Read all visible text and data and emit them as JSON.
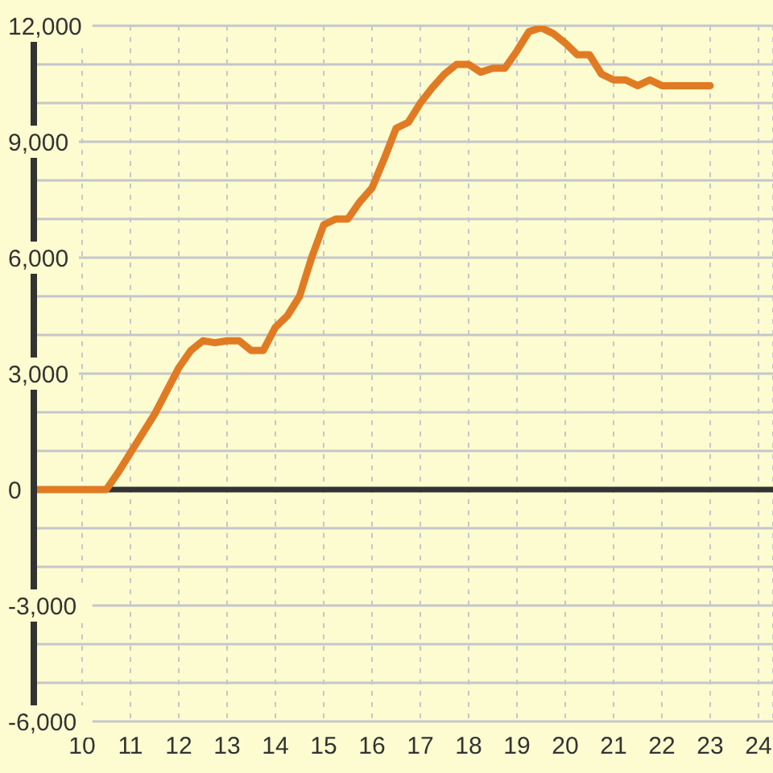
{
  "chart_data": {
    "type": "line",
    "x": [
      9,
      9.25,
      9.5,
      9.75,
      10,
      10.25,
      10.5,
      10.75,
      11,
      11.25,
      11.5,
      11.75,
      12,
      12.25,
      12.5,
      12.75,
      13,
      13.25,
      13.5,
      13.75,
      14,
      14.25,
      14.5,
      14.75,
      15,
      15.25,
      15.5,
      15.75,
      16,
      16.25,
      16.5,
      16.75,
      17,
      17.25,
      17.5,
      17.75,
      18,
      18.25,
      18.5,
      18.75,
      19,
      19.25,
      19.5,
      19.75,
      20,
      20.25,
      20.5,
      20.75,
      21,
      21.25,
      21.5,
      21.75,
      22,
      22.25,
      22.5,
      22.75,
      23
    ],
    "series": [
      {
        "color": "#e07b24",
        "values": [
          0,
          0,
          0,
          0,
          0,
          0,
          0,
          450,
          950,
          1450,
          1950,
          2550,
          3150,
          3600,
          3850,
          3800,
          3850,
          3850,
          3600,
          3600,
          4200,
          4500,
          5000,
          6000,
          6850,
          7000,
          7000,
          7450,
          7800,
          8550,
          9350,
          9500,
          10000,
          10400,
          10750,
          11000,
          11000,
          10800,
          10900,
          10900,
          11350,
          11850,
          11950,
          11800,
          11550,
          11250,
          11250,
          10750,
          10600,
          10600,
          10450,
          10600,
          10450,
          10450,
          10450,
          10450,
          10450
        ]
      }
    ],
    "xlim": [
      9,
      24.3
    ],
    "xticks": [
      10,
      11,
      12,
      13,
      14,
      15,
      16,
      17,
      18,
      19,
      20,
      21,
      22,
      23,
      24
    ],
    "ylim": [
      -6000,
      12000
    ],
    "yticks": [
      {
        "value": -6000,
        "label": "-6,000"
      },
      {
        "value": -5000,
        "label": null
      },
      {
        "value": -4000,
        "label": null
      },
      {
        "value": -3000,
        "label": "-3,000"
      },
      {
        "value": -2000,
        "label": null
      },
      {
        "value": -1000,
        "label": null
      },
      0,
      {
        "value": 1000,
        "label": null
      },
      {
        "value": 2000,
        "label": null
      },
      {
        "value": 3000,
        "label": "3,000"
      },
      {
        "value": 4000,
        "label": null
      },
      {
        "value": 5000,
        "label": null
      },
      {
        "value": 6000,
        "label": "6,000"
      },
      {
        "value": 7000,
        "label": null
      },
      {
        "value": 8000,
        "label": null
      },
      {
        "value": 9000,
        "label": "9,000"
      },
      {
        "value": 10000,
        "label": null
      },
      {
        "value": 11000,
        "label": null
      },
      {
        "value": 12000,
        "label": "12,000"
      }
    ],
    "ref_lines": [
      {
        "axis": "y",
        "value": 0,
        "color": "#333333"
      }
    ],
    "grid": true,
    "line_style": "solid"
  }
}
